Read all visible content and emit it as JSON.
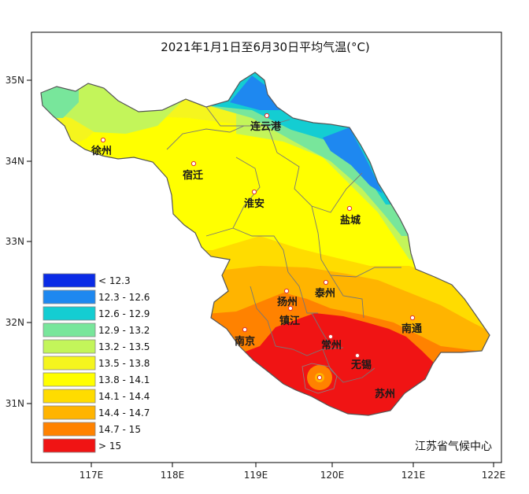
{
  "map": {
    "title": "2021年1月1日至6月30日平均气温(°C)",
    "credit": "江苏省气候中心",
    "lon_ticks": [
      "117E",
      "118E",
      "119E",
      "120E",
      "121E",
      "122E"
    ],
    "lat_ticks": [
      "35N",
      "34N",
      "33N",
      "32N",
      "31N"
    ],
    "cities": [
      {
        "name": "连云港"
      },
      {
        "name": "徐州"
      },
      {
        "name": "宿迁"
      },
      {
        "name": "淮安"
      },
      {
        "name": "盐城"
      },
      {
        "name": "扬州"
      },
      {
        "name": "泰州"
      },
      {
        "name": "镇江"
      },
      {
        "name": "南京"
      },
      {
        "name": "常州"
      },
      {
        "name": "无锡"
      },
      {
        "name": "南通"
      },
      {
        "name": "苏州"
      }
    ],
    "legend": [
      {
        "label": "< 12.3",
        "color": "#0a2be6"
      },
      {
        "label": "12.3 - 12.6",
        "color": "#1e88f0"
      },
      {
        "label": "12.6 - 12.9",
        "color": "#14cdd2"
      },
      {
        "label": "12.9 - 13.2",
        "color": "#78e69b"
      },
      {
        "label": "13.2 - 13.5",
        "color": "#c3f55a"
      },
      {
        "label": "13.5 - 13.8",
        "color": "#f5f51e"
      },
      {
        "label": "13.8 - 14.1",
        "color": "#ffff00"
      },
      {
        "label": "14.1 - 14.4",
        "color": "#ffdc00"
      },
      {
        "label": "14.4 - 14.7",
        "color": "#ffb400"
      },
      {
        "label": "14.7 - 15",
        "color": "#ff8200"
      },
      {
        "label": "> 15",
        "color": "#f01414"
      }
    ]
  }
}
